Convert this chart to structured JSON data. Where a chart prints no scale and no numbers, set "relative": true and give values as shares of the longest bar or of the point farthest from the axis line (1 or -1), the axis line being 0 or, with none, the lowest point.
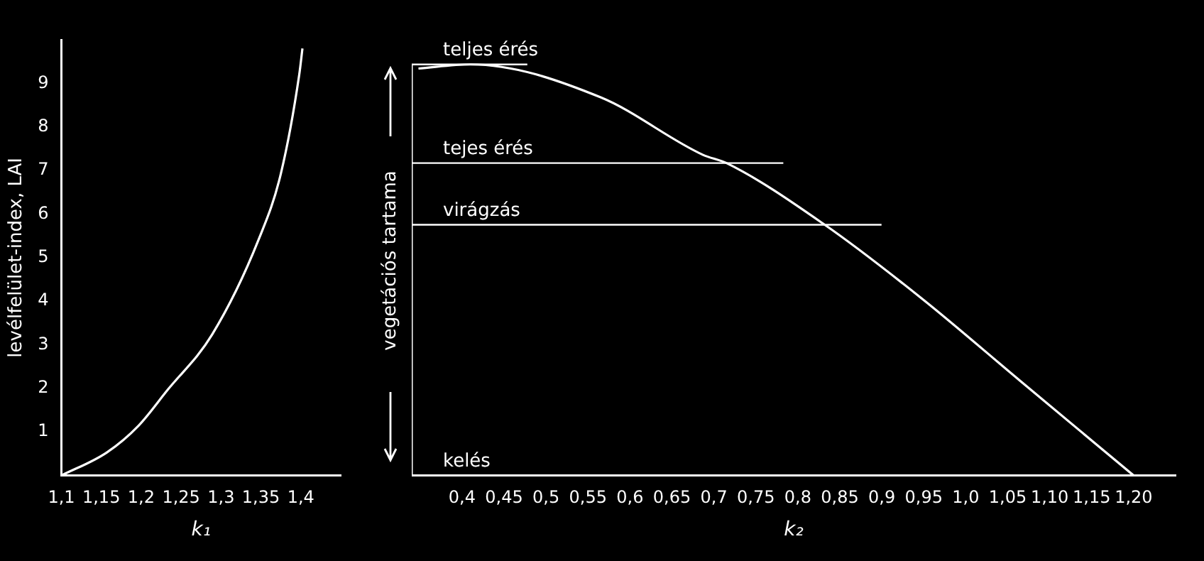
{
  "chart_data": [
    {
      "type": "line",
      "xlabel": "k₁",
      "ylabel": "levélfelület-index, LAI",
      "xlim": [
        1.1,
        1.45
      ],
      "ylim": [
        0,
        10
      ],
      "xticks": [
        {
          "value": 1.1,
          "label": "1,1"
        },
        {
          "value": 1.15,
          "label": "1,15"
        },
        {
          "value": 1.2,
          "label": "1,2"
        },
        {
          "value": 1.25,
          "label": "1,25"
        },
        {
          "value": 1.3,
          "label": "1,3"
        },
        {
          "value": 1.35,
          "label": "1,35"
        },
        {
          "value": 1.4,
          "label": "1,4"
        }
      ],
      "yticks": [
        1,
        2,
        3,
        4,
        5,
        6,
        7,
        8,
        9
      ],
      "grid": false,
      "legend": false,
      "marker": "none",
      "series": [
        {
          "color": "#ffffff",
          "x": [
            1.1,
            1.157,
            1.197,
            1.232,
            1.289,
            1.347,
            1.375,
            1.398,
            1.402
          ],
          "values": [
            0,
            0.53,
            1.15,
            1.94,
            3.24,
            5.41,
            6.93,
            9.2,
            9.8
          ]
        }
      ]
    },
    {
      "type": "line",
      "relative": true,
      "xlabel": "k₂",
      "ylabel": "vegetációs tartama",
      "xlim": [
        0.34,
        1.25
      ],
      "xticks": [
        {
          "value": 0.4,
          "label": "0,4"
        },
        {
          "value": 0.45,
          "label": "0,45"
        },
        {
          "value": 0.5,
          "label": "0,5"
        },
        {
          "value": 0.55,
          "label": "0,55"
        },
        {
          "value": 0.6,
          "label": "0,6"
        },
        {
          "value": 0.65,
          "label": "0,65"
        },
        {
          "value": 0.7,
          "label": "0,7"
        },
        {
          "value": 0.75,
          "label": "0,75"
        },
        {
          "value": 0.8,
          "label": "0,8"
        },
        {
          "value": 0.85,
          "label": "0,85"
        },
        {
          "value": 0.9,
          "label": "0,9"
        },
        {
          "value": 0.95,
          "label": "0,95"
        },
        {
          "value": 1.0,
          "label": "1,0"
        },
        {
          "value": 1.05,
          "label": "1,05"
        },
        {
          "value": 1.1,
          "label": "1,10"
        },
        {
          "value": 1.15,
          "label": "1,15"
        },
        {
          "value": 1.2,
          "label": "1,20"
        }
      ],
      "grid": false,
      "legend": false,
      "marker": "none",
      "ref_lines": [
        {
          "axis": "y",
          "value": 1.0,
          "label": "teljes érés",
          "color": "#ffffff"
        },
        {
          "axis": "y",
          "value": 0.76,
          "label": "tejes érés",
          "color": "#ffffff"
        },
        {
          "axis": "y",
          "value": 0.61,
          "label": "virágzás",
          "color": "#ffffff"
        }
      ],
      "annotations": [
        "kelés"
      ],
      "series": [
        {
          "color": "#ffffff",
          "x": [
            0.348,
            0.41,
            0.565,
            0.687,
            0.715,
            0.832,
            0.948,
            1.065,
            1.2
          ],
          "values": [
            0.99,
            1.0,
            0.92,
            0.78,
            0.76,
            0.61,
            0.43,
            0.23,
            0
          ]
        }
      ]
    }
  ]
}
